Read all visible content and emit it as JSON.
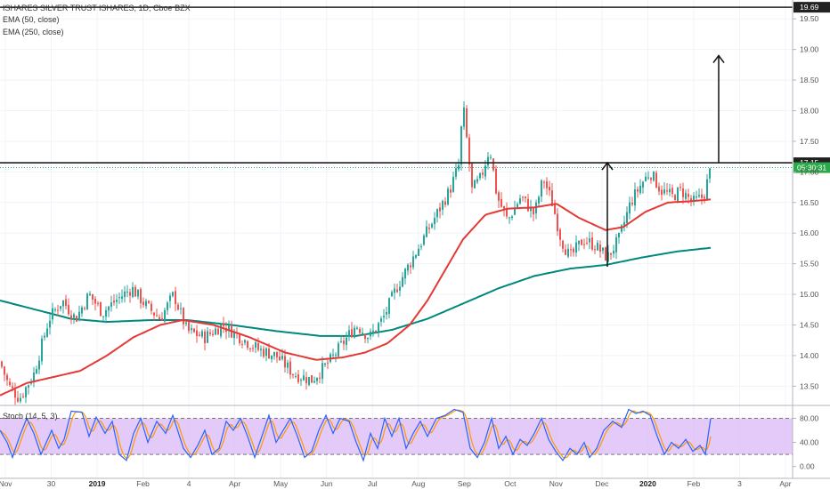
{
  "legend": {
    "title": "ISHARES SILVER TRUST ISHARES, 1D, Cboe BZX",
    "ema50": "EMA (50, close)",
    "ema250": "EMA (250, close)",
    "stoch": "Stoch (14, 5, 3)"
  },
  "colors": {
    "up": "#26a69a",
    "down": "#ef5350",
    "ema50": "#e53935",
    "ema250": "#00897b",
    "stoch_k": "#2962ff",
    "stoch_d": "#ff9800",
    "stoch_band": "#d9b8f5",
    "price_label_bg": "#2ba84a"
  },
  "chart_data": [
    {
      "type": "candlestick",
      "title": "ISHARES SILVER TRUST ISHARES, 1D, Cboe BZX",
      "y_range": [
        13.2,
        19.75
      ],
      "y_ticks": [
        "13.50",
        "14.00",
        "14.50",
        "15.00",
        "15.50",
        "16.00",
        "16.50",
        "17.00",
        "17.50",
        "18.00",
        "18.50",
        "19.00",
        "19.50"
      ],
      "x_labels": [
        {
          "text": "Nov",
          "bold": false
        },
        {
          "text": "30",
          "bold": false
        },
        {
          "text": "2019",
          "bold": true
        },
        {
          "text": "Feb",
          "bold": false
        },
        {
          "text": "4",
          "bold": false
        },
        {
          "text": "Apr",
          "bold": false
        },
        {
          "text": "May",
          "bold": false
        },
        {
          "text": "Jun",
          "bold": false
        },
        {
          "text": "Jul",
          "bold": false
        },
        {
          "text": "Aug",
          "bold": false
        },
        {
          "text": "Sep",
          "bold": false
        },
        {
          "text": "Oct",
          "bold": false
        },
        {
          "text": "Nov",
          "bold": false
        },
        {
          "text": "Dec",
          "bold": false
        },
        {
          "text": "2020",
          "bold": true
        },
        {
          "text": "Feb",
          "bold": false
        },
        {
          "text": "3",
          "bold": false
        },
        {
          "text": "Apr",
          "bold": false
        }
      ],
      "horizontal_lines": [
        {
          "value": 19.69,
          "label": "19.69"
        },
        {
          "value": 17.15,
          "label": "17.15"
        }
      ],
      "current_price": {
        "value": 17.07,
        "label": "05:30:31"
      },
      "close_anchors": [
        [
          0,
          13.9
        ],
        [
          10,
          13.5
        ],
        [
          22,
          13.3
        ],
        [
          38,
          13.7
        ],
        [
          55,
          14.6
        ],
        [
          70,
          14.9
        ],
        [
          85,
          14.6
        ],
        [
          100,
          15.0
        ],
        [
          115,
          14.7
        ],
        [
          130,
          14.9
        ],
        [
          148,
          15.1
        ],
        [
          165,
          14.8
        ],
        [
          180,
          14.6
        ],
        [
          195,
          15.0
        ],
        [
          210,
          14.4
        ],
        [
          230,
          14.3
        ],
        [
          250,
          14.5
        ],
        [
          270,
          14.3
        ],
        [
          290,
          14.1
        ],
        [
          310,
          14.0
        ],
        [
          330,
          13.7
        ],
        [
          350,
          13.6
        ],
        [
          370,
          13.9
        ],
        [
          385,
          14.2
        ],
        [
          400,
          14.5
        ],
        [
          415,
          14.3
        ],
        [
          430,
          14.6
        ],
        [
          445,
          15.1
        ],
        [
          460,
          15.5
        ],
        [
          475,
          15.9
        ],
        [
          490,
          16.3
        ],
        [
          505,
          16.7
        ],
        [
          515,
          17.1
        ],
        [
          520,
          18.1
        ],
        [
          530,
          16.7
        ],
        [
          540,
          16.9
        ],
        [
          550,
          17.4
        ],
        [
          558,
          16.6
        ],
        [
          570,
          16.2
        ],
        [
          585,
          16.6
        ],
        [
          600,
          16.3
        ],
        [
          610,
          16.9
        ],
        [
          620,
          16.5
        ],
        [
          630,
          15.9
        ],
        [
          640,
          15.6
        ],
        [
          655,
          15.9
        ],
        [
          668,
          15.8
        ],
        [
          682,
          15.6
        ],
        [
          695,
          15.9
        ],
        [
          708,
          16.5
        ],
        [
          720,
          16.8
        ],
        [
          730,
          17.0
        ],
        [
          742,
          16.7
        ],
        [
          755,
          16.6
        ],
        [
          765,
          16.7
        ],
        [
          778,
          16.5
        ],
        [
          790,
          16.6
        ],
        [
          798,
          17.05
        ]
      ],
      "ema50_anchors": [
        [
          0,
          13.35
        ],
        [
          30,
          13.55
        ],
        [
          60,
          13.65
        ],
        [
          90,
          13.75
        ],
        [
          120,
          14.0
        ],
        [
          150,
          14.3
        ],
        [
          180,
          14.5
        ],
        [
          205,
          14.58
        ],
        [
          240,
          14.5
        ],
        [
          280,
          14.3
        ],
        [
          320,
          14.05
        ],
        [
          355,
          13.93
        ],
        [
          385,
          13.97
        ],
        [
          410,
          14.05
        ],
        [
          435,
          14.2
        ],
        [
          460,
          14.5
        ],
        [
          480,
          14.9
        ],
        [
          500,
          15.4
        ],
        [
          520,
          15.9
        ],
        [
          545,
          16.3
        ],
        [
          570,
          16.4
        ],
        [
          600,
          16.42
        ],
        [
          625,
          16.48
        ],
        [
          650,
          16.25
        ],
        [
          680,
          16.05
        ],
        [
          700,
          16.1
        ],
        [
          725,
          16.35
        ],
        [
          750,
          16.5
        ],
        [
          775,
          16.52
        ],
        [
          798,
          16.55
        ]
      ],
      "ema250_anchors": [
        [
          0,
          14.9
        ],
        [
          40,
          14.75
        ],
        [
          80,
          14.6
        ],
        [
          120,
          14.55
        ],
        [
          170,
          14.58
        ],
        [
          210,
          14.58
        ],
        [
          260,
          14.5
        ],
        [
          310,
          14.4
        ],
        [
          360,
          14.32
        ],
        [
          400,
          14.32
        ],
        [
          440,
          14.42
        ],
        [
          480,
          14.6
        ],
        [
          520,
          14.85
        ],
        [
          560,
          15.1
        ],
        [
          600,
          15.3
        ],
        [
          640,
          15.42
        ],
        [
          680,
          15.48
        ],
        [
          720,
          15.6
        ],
        [
          760,
          15.7
        ],
        [
          798,
          15.76
        ]
      ],
      "annotations": [
        {
          "type": "arrow-up",
          "x": 682,
          "from": 15.45,
          "to": 17.15
        },
        {
          "type": "arrow-up",
          "x": 807,
          "from": 17.15,
          "to": 18.9
        }
      ]
    },
    {
      "type": "line",
      "title": "Stoch (14, 5, 3)",
      "y_range": [
        -5,
        100
      ],
      "y_ticks": [
        "0.00",
        "40.00",
        "80.00"
      ],
      "band": [
        20,
        80
      ],
      "k_anchors": [
        [
          0,
          60
        ],
        [
          8,
          40
        ],
        [
          14,
          15
        ],
        [
          22,
          50
        ],
        [
          30,
          80
        ],
        [
          38,
          55
        ],
        [
          46,
          20
        ],
        [
          52,
          40
        ],
        [
          58,
          60
        ],
        [
          66,
          30
        ],
        [
          72,
          45
        ],
        [
          80,
          92
        ],
        [
          92,
          90
        ],
        [
          100,
          50
        ],
        [
          108,
          82
        ],
        [
          118,
          55
        ],
        [
          126,
          75
        ],
        [
          134,
          20
        ],
        [
          142,
          10
        ],
        [
          150,
          55
        ],
        [
          158,
          80
        ],
        [
          166,
          40
        ],
        [
          176,
          75
        ],
        [
          186,
          55
        ],
        [
          194,
          85
        ],
        [
          206,
          30
        ],
        [
          214,
          15
        ],
        [
          222,
          35
        ],
        [
          230,
          60
        ],
        [
          238,
          20
        ],
        [
          246,
          30
        ],
        [
          254,
          75
        ],
        [
          262,
          60
        ],
        [
          270,
          80
        ],
        [
          278,
          50
        ],
        [
          286,
          15
        ],
        [
          294,
          50
        ],
        [
          302,
          85
        ],
        [
          310,
          40
        ],
        [
          318,
          60
        ],
        [
          326,
          80
        ],
        [
          334,
          50
        ],
        [
          342,
          15
        ],
        [
          350,
          25
        ],
        [
          358,
          60
        ],
        [
          366,
          85
        ],
        [
          374,
          55
        ],
        [
          382,
          80
        ],
        [
          392,
          75
        ],
        [
          400,
          40
        ],
        [
          408,
          10
        ],
        [
          416,
          55
        ],
        [
          424,
          30
        ],
        [
          432,
          80
        ],
        [
          440,
          50
        ],
        [
          448,
          80
        ],
        [
          456,
          30
        ],
        [
          464,
          55
        ],
        [
          472,
          75
        ],
        [
          480,
          50
        ],
        [
          490,
          80
        ],
        [
          500,
          85
        ],
        [
          510,
          95
        ],
        [
          520,
          90
        ],
        [
          528,
          30
        ],
        [
          536,
          15
        ],
        [
          544,
          40
        ],
        [
          552,
          80
        ],
        [
          560,
          30
        ],
        [
          568,
          50
        ],
        [
          576,
          20
        ],
        [
          584,
          45
        ],
        [
          592,
          35
        ],
        [
          600,
          55
        ],
        [
          608,
          80
        ],
        [
          616,
          45
        ],
        [
          624,
          25
        ],
        [
          632,
          10
        ],
        [
          640,
          30
        ],
        [
          648,
          20
        ],
        [
          656,
          40
        ],
        [
          662,
          15
        ],
        [
          670,
          30
        ],
        [
          678,
          60
        ],
        [
          688,
          75
        ],
        [
          698,
          65
        ],
        [
          706,
          95
        ],
        [
          714,
          88
        ],
        [
          722,
          92
        ],
        [
          730,
          85
        ],
        [
          738,
          50
        ],
        [
          746,
          20
        ],
        [
          754,
          40
        ],
        [
          762,
          30
        ],
        [
          770,
          45
        ],
        [
          778,
          25
        ],
        [
          786,
          35
        ],
        [
          792,
          20
        ],
        [
          798,
          80
        ]
      ]
    }
  ]
}
